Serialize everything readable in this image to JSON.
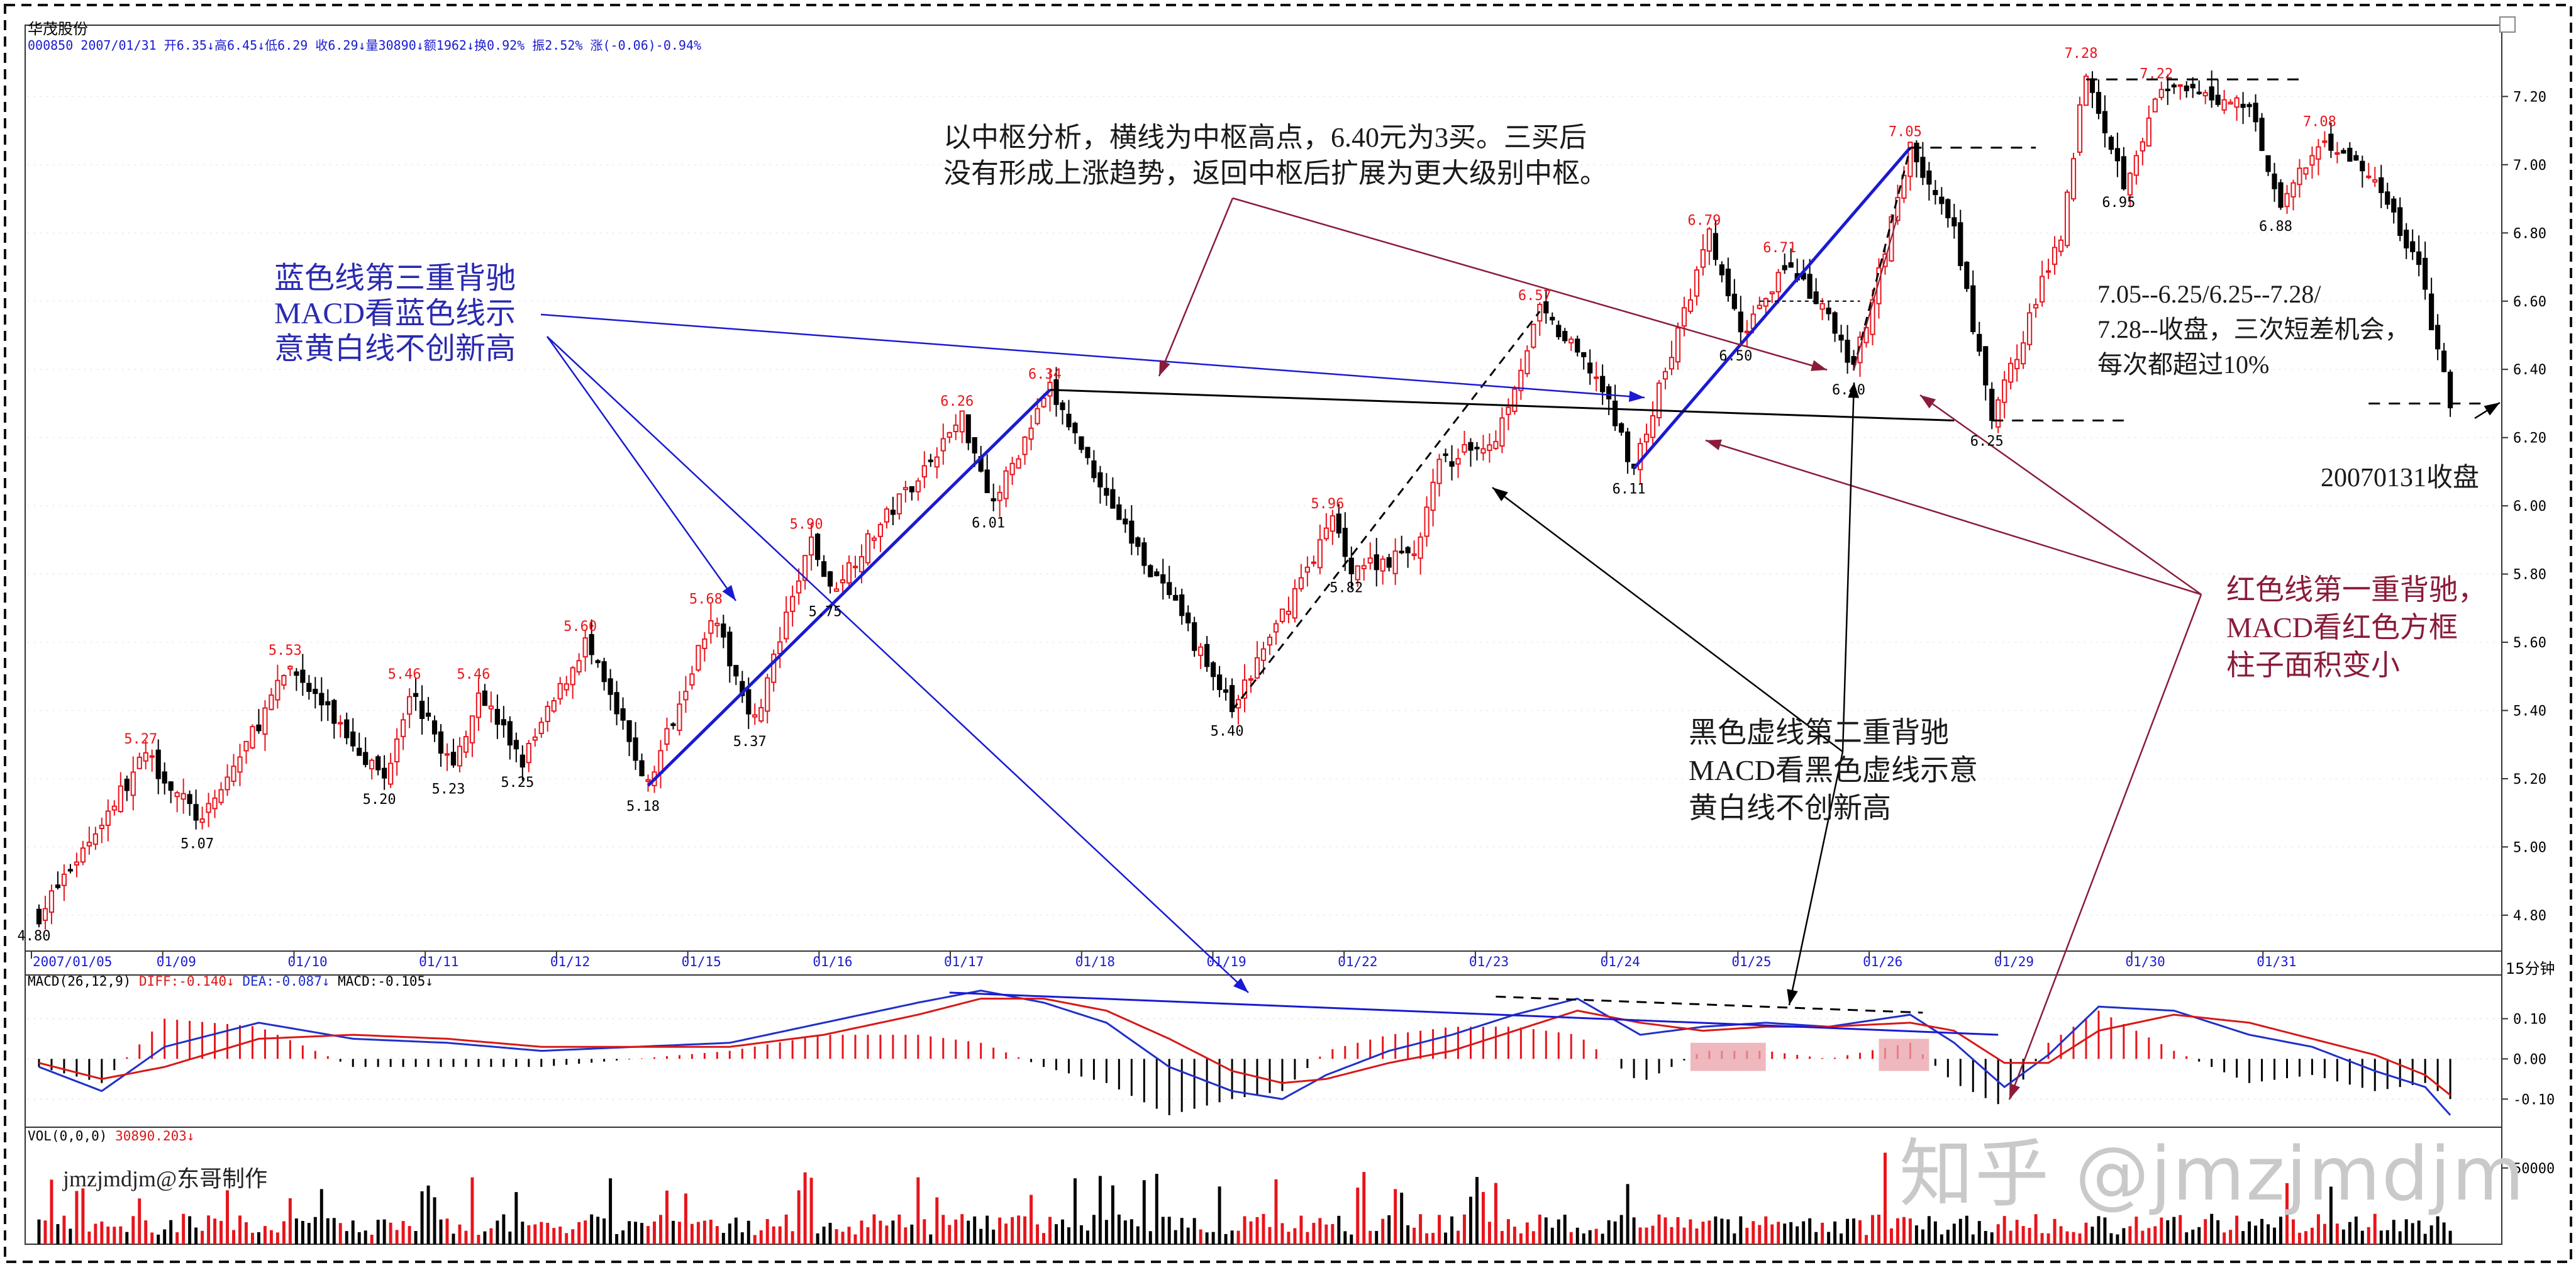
{
  "header": {
    "stock_name": "华茂股份",
    "info_line": "000850 2007/01/31 开6.35↓高6.45↓低6.29 收6.29↓量30890↓额1962↓换0.92% 振2.52% 涨(-0.06)-0.94%"
  },
  "annotations": {
    "center_analysis": [
      "以中枢分析，横线为中枢高点，6.40元为3买。三买后",
      "没有形成上涨趋势，返回中枢后扩展为更大级别中枢。"
    ],
    "blue_divergence": [
      "蓝色线第三重背驰",
      "MACD看蓝色线示",
      "意黄白线不创新高"
    ],
    "black_divergence": [
      "黑色虚线第二重背驰",
      "MACD看黑色虚线示意",
      "黄白线不创新高"
    ],
    "red_divergence": [
      "红色线第一重背驰，",
      "MACD看红色方框",
      "柱子面积变小"
    ],
    "short_trades": [
      "7.05--6.25/6.25--7.28/",
      "7.28--收盘，三次短差机会，",
      "每次都超过10%"
    ],
    "close_note": "20070131收盘"
  },
  "credit": "jmzjmdjm@东哥制作",
  "watermark": "知乎 @jmzjmdjm",
  "macd_header": [
    "MACD(26,12,9)",
    "DIFF:-0.140↓",
    "DEA:-0.087↓",
    "MACD:-0.105↓"
  ],
  "vol_header": [
    "VOL(0,0,0)",
    "30890.203↓"
  ],
  "period_label": "15分钟",
  "colors": {
    "up": "#e8141b",
    "down": "#000000",
    "blue": "#1a1ad2",
    "maroon": "#8a1c3a",
    "diff": "#2030c8",
    "dea": "#d81818",
    "highlight": "#e8a0a8",
    "tick_red": "#e8141b"
  },
  "chart_data": [
    {
      "type": "candlestick",
      "name": "price",
      "x_tick_labels": [
        "2007/01/05",
        "01/09",
        "01/10",
        "01/11",
        "01/12",
        "01/15",
        "01/16",
        "01/17",
        "01/18",
        "01/19",
        "01/22",
        "01/23",
        "01/24",
        "01/25",
        "01/26",
        "01/29",
        "01/30",
        "01/31"
      ],
      "y_ticks": [
        4.8,
        5.0,
        5.2,
        5.4,
        5.6,
        5.8,
        6.0,
        6.2,
        6.4,
        6.6,
        6.8,
        7.0,
        7.2
      ],
      "ylim": [
        4.75,
        7.28
      ],
      "points": [
        {
          "x": 0,
          "y": 4.8
        },
        {
          "x": 17,
          "y": 5.27
        },
        {
          "x": 26,
          "y": 5.07
        },
        {
          "x": 40,
          "y": 5.53
        },
        {
          "x": 55,
          "y": 5.2
        },
        {
          "x": 59,
          "y": 5.46
        },
        {
          "x": 66,
          "y": 5.23
        },
        {
          "x": 70,
          "y": 5.46
        },
        {
          "x": 77,
          "y": 5.25
        },
        {
          "x": 87,
          "y": 5.6
        },
        {
          "x": 97,
          "y": 5.18
        },
        {
          "x": 107,
          "y": 5.68
        },
        {
          "x": 114,
          "y": 5.37
        },
        {
          "x": 123,
          "y": 5.9
        },
        {
          "x": 126,
          "y": 5.75
        },
        {
          "x": 147,
          "y": 6.26
        },
        {
          "x": 152,
          "y": 6.01
        },
        {
          "x": 161,
          "y": 6.34
        },
        {
          "x": 174,
          "y": 5.9
        },
        {
          "x": 181,
          "y": 5.7
        },
        {
          "x": 190,
          "y": 5.4
        },
        {
          "x": 206,
          "y": 5.96
        },
        {
          "x": 209,
          "y": 5.82
        },
        {
          "x": 219,
          "y": 5.86
        },
        {
          "x": 223,
          "y": 6.12
        },
        {
          "x": 232,
          "y": 6.2
        },
        {
          "x": 239,
          "y": 6.57
        },
        {
          "x": 248,
          "y": 6.38
        },
        {
          "x": 254,
          "y": 6.11
        },
        {
          "x": 266,
          "y": 6.79
        },
        {
          "x": 271,
          "y": 6.5
        },
        {
          "x": 278,
          "y": 6.71
        },
        {
          "x": 285,
          "y": 6.55
        },
        {
          "x": 289,
          "y": 6.4
        },
        {
          "x": 298,
          "y": 7.05
        },
        {
          "x": 305,
          "y": 6.8
        },
        {
          "x": 311,
          "y": 6.25
        },
        {
          "x": 322,
          "y": 6.8
        },
        {
          "x": 326,
          "y": 7.28
        },
        {
          "x": 332,
          "y": 6.95
        },
        {
          "x": 338,
          "y": 7.22
        },
        {
          "x": 352,
          "y": 7.18
        },
        {
          "x": 357,
          "y": 6.88
        },
        {
          "x": 364,
          "y": 7.08
        },
        {
          "x": 372,
          "y": 6.95
        },
        {
          "x": 379,
          "y": 6.7
        },
        {
          "x": 384,
          "y": 6.29
        }
      ],
      "point_labels": [
        {
          "x": 0,
          "y": 4.8,
          "text": "4.80",
          "kind": "low"
        },
        {
          "x": 17,
          "y": 5.27,
          "text": "5.27",
          "kind": "high"
        },
        {
          "x": 26,
          "y": 5.07,
          "text": "5.07",
          "kind": "low"
        },
        {
          "x": 40,
          "y": 5.53,
          "text": "5.53",
          "kind": "high"
        },
        {
          "x": 55,
          "y": 5.2,
          "text": "5.20",
          "kind": "low"
        },
        {
          "x": 59,
          "y": 5.46,
          "text": "5.46",
          "kind": "high"
        },
        {
          "x": 66,
          "y": 5.23,
          "text": "5.23",
          "kind": "low"
        },
        {
          "x": 70,
          "y": 5.46,
          "text": "5.46",
          "kind": "high"
        },
        {
          "x": 77,
          "y": 5.25,
          "text": "5.25",
          "kind": "low"
        },
        {
          "x": 87,
          "y": 5.6,
          "text": "5.60",
          "kind": "high"
        },
        {
          "x": 97,
          "y": 5.18,
          "text": "5.18",
          "kind": "low"
        },
        {
          "x": 107,
          "y": 5.68,
          "text": "5.68",
          "kind": "high"
        },
        {
          "x": 114,
          "y": 5.37,
          "text": "5.37",
          "kind": "low"
        },
        {
          "x": 123,
          "y": 5.9,
          "text": "5.90",
          "kind": "high"
        },
        {
          "x": 126,
          "y": 5.75,
          "text": "5.75",
          "kind": "low"
        },
        {
          "x": 147,
          "y": 6.26,
          "text": "6.26",
          "kind": "high"
        },
        {
          "x": 152,
          "y": 6.01,
          "text": "6.01",
          "kind": "low"
        },
        {
          "x": 161,
          "y": 6.34,
          "text": "6.34",
          "kind": "high"
        },
        {
          "x": 190,
          "y": 5.4,
          "text": "5.40",
          "kind": "low"
        },
        {
          "x": 206,
          "y": 5.96,
          "text": "5.96",
          "kind": "high"
        },
        {
          "x": 209,
          "y": 5.82,
          "text": "5.82",
          "kind": "low"
        },
        {
          "x": 239,
          "y": 6.57,
          "text": "6.57",
          "kind": "high"
        },
        {
          "x": 254,
          "y": 6.11,
          "text": "6.11",
          "kind": "low"
        },
        {
          "x": 266,
          "y": 6.79,
          "text": "6.79",
          "kind": "high"
        },
        {
          "x": 271,
          "y": 6.5,
          "text": "6.50",
          "kind": "low"
        },
        {
          "x": 278,
          "y": 6.71,
          "text": "6.71",
          "kind": "high"
        },
        {
          "x": 289,
          "y": 6.4,
          "text": "6.40",
          "kind": "low"
        },
        {
          "x": 298,
          "y": 7.05,
          "text": "7.05",
          "kind": "high"
        },
        {
          "x": 311,
          "y": 6.25,
          "text": "6.25",
          "kind": "low"
        },
        {
          "x": 326,
          "y": 7.28,
          "text": "7.28",
          "kind": "high"
        },
        {
          "x": 332,
          "y": 6.95,
          "text": "6.95",
          "kind": "low"
        },
        {
          "x": 338,
          "y": 7.22,
          "text": "7.22",
          "kind": "high"
        },
        {
          "x": 357,
          "y": 6.88,
          "text": "6.88",
          "kind": "low"
        },
        {
          "x": 364,
          "y": 7.08,
          "text": "7.08",
          "kind": "high"
        }
      ]
    },
    {
      "type": "line",
      "name": "macd",
      "y_ticks": [
        0.1,
        0.0,
        -0.1
      ],
      "ylim": [
        -0.17,
        0.19
      ],
      "series": [
        {
          "name": "DIFF",
          "points": [
            {
              "x": 0,
              "y": -0.02
            },
            {
              "x": 10,
              "y": -0.08
            },
            {
              "x": 20,
              "y": 0.03
            },
            {
              "x": 35,
              "y": 0.09
            },
            {
              "x": 50,
              "y": 0.05
            },
            {
              "x": 65,
              "y": 0.04
            },
            {
              "x": 80,
              "y": 0.02
            },
            {
              "x": 95,
              "y": 0.03
            },
            {
              "x": 110,
              "y": 0.04
            },
            {
              "x": 125,
              "y": 0.09
            },
            {
              "x": 140,
              "y": 0.14
            },
            {
              "x": 150,
              "y": 0.17
            },
            {
              "x": 160,
              "y": 0.14
            },
            {
              "x": 170,
              "y": 0.09
            },
            {
              "x": 180,
              "y": -0.02
            },
            {
              "x": 190,
              "y": -0.08
            },
            {
              "x": 198,
              "y": -0.1
            },
            {
              "x": 205,
              "y": -0.04
            },
            {
              "x": 215,
              "y": 0.02
            },
            {
              "x": 225,
              "y": 0.06
            },
            {
              "x": 235,
              "y": 0.11
            },
            {
              "x": 245,
              "y": 0.15
            },
            {
              "x": 255,
              "y": 0.06
            },
            {
              "x": 265,
              "y": 0.08
            },
            {
              "x": 275,
              "y": 0.09
            },
            {
              "x": 285,
              "y": 0.08
            },
            {
              "x": 298,
              "y": 0.11
            },
            {
              "x": 305,
              "y": 0.04
            },
            {
              "x": 313,
              "y": -0.07
            },
            {
              "x": 320,
              "y": 0.01
            },
            {
              "x": 328,
              "y": 0.13
            },
            {
              "x": 340,
              "y": 0.12
            },
            {
              "x": 352,
              "y": 0.06
            },
            {
              "x": 362,
              "y": 0.03
            },
            {
              "x": 372,
              "y": -0.03
            },
            {
              "x": 380,
              "y": -0.07
            },
            {
              "x": 384,
              "y": -0.14
            }
          ]
        },
        {
          "name": "DEA",
          "points": [
            {
              "x": 0,
              "y": -0.01
            },
            {
              "x": 10,
              "y": -0.05
            },
            {
              "x": 20,
              "y": -0.02
            },
            {
              "x": 35,
              "y": 0.05
            },
            {
              "x": 50,
              "y": 0.06
            },
            {
              "x": 65,
              "y": 0.05
            },
            {
              "x": 80,
              "y": 0.03
            },
            {
              "x": 95,
              "y": 0.03
            },
            {
              "x": 110,
              "y": 0.03
            },
            {
              "x": 125,
              "y": 0.06
            },
            {
              "x": 140,
              "y": 0.11
            },
            {
              "x": 150,
              "y": 0.15
            },
            {
              "x": 160,
              "y": 0.15
            },
            {
              "x": 170,
              "y": 0.12
            },
            {
              "x": 180,
              "y": 0.05
            },
            {
              "x": 190,
              "y": -0.03
            },
            {
              "x": 198,
              "y": -0.06
            },
            {
              "x": 205,
              "y": -0.05
            },
            {
              "x": 215,
              "y": -0.01
            },
            {
              "x": 225,
              "y": 0.02
            },
            {
              "x": 235,
              "y": 0.07
            },
            {
              "x": 245,
              "y": 0.12
            },
            {
              "x": 255,
              "y": 0.09
            },
            {
              "x": 265,
              "y": 0.07
            },
            {
              "x": 275,
              "y": 0.08
            },
            {
              "x": 285,
              "y": 0.08
            },
            {
              "x": 298,
              "y": 0.09
            },
            {
              "x": 305,
              "y": 0.07
            },
            {
              "x": 313,
              "y": -0.01
            },
            {
              "x": 320,
              "y": -0.01
            },
            {
              "x": 328,
              "y": 0.07
            },
            {
              "x": 340,
              "y": 0.11
            },
            {
              "x": 352,
              "y": 0.09
            },
            {
              "x": 362,
              "y": 0.05
            },
            {
              "x": 372,
              "y": 0.01
            },
            {
              "x": 380,
              "y": -0.04
            },
            {
              "x": 384,
              "y": -0.09
            }
          ]
        }
      ]
    },
    {
      "type": "bar",
      "name": "volume",
      "y_ticks": [
        50000
      ],
      "ylim": [
        0,
        66000
      ]
    }
  ]
}
